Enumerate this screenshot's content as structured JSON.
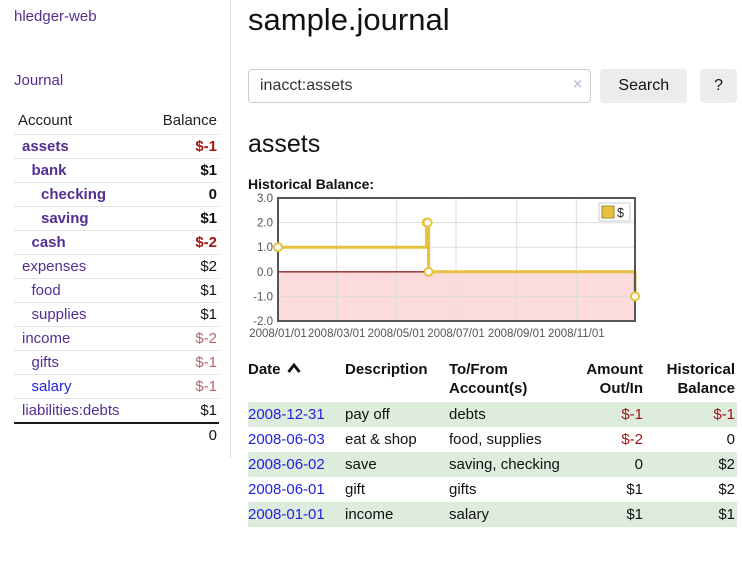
{
  "app": {
    "brand": "hledger-web",
    "nav_journal": "Journal"
  },
  "colors": {
    "link_purple": "#552e91",
    "link_blue": "#2222dd",
    "negative_strong": "#9e1414",
    "negative_soft": "#b36a6a",
    "row_stripe_green": "#ddecdd",
    "chart_line_gold": "#e7c13d"
  },
  "sidebar": {
    "accounts_header": {
      "account": "Account",
      "balance": "Balance"
    },
    "accounts": [
      {
        "name": "assets",
        "depth": 1,
        "bold": true,
        "link": "purple",
        "balance": "$-1",
        "balance_style": "bal-neg-strong"
      },
      {
        "name": "bank",
        "depth": 2,
        "bold": true,
        "link": "purple",
        "balance": "$1",
        "balance_style": "bal-pos-strong"
      },
      {
        "name": "checking",
        "depth": 3,
        "bold": true,
        "link": "purple",
        "balance": "0",
        "balance_style": "bal-pos-strong"
      },
      {
        "name": "saving",
        "depth": 3,
        "bold": true,
        "link": "purple",
        "balance": "$1",
        "balance_style": "bal-pos-strong"
      },
      {
        "name": "cash",
        "depth": 2,
        "bold": true,
        "link": "purple",
        "balance": "$-2",
        "balance_style": "bal-neg-strong"
      },
      {
        "name": "expenses",
        "depth": 1,
        "bold": false,
        "link": "purple",
        "balance": "$2",
        "balance_style": "bal-pos"
      },
      {
        "name": "food",
        "depth": 2,
        "bold": false,
        "link": "purple",
        "balance": "$1",
        "balance_style": "bal-pos"
      },
      {
        "name": "supplies",
        "depth": 2,
        "bold": false,
        "link": "purple",
        "balance": "$1",
        "balance_style": "bal-pos"
      },
      {
        "name": "income",
        "depth": 1,
        "bold": false,
        "link": "purple",
        "balance": "$-2",
        "balance_style": "bal-neg-soft"
      },
      {
        "name": "gifts",
        "depth": 2,
        "bold": false,
        "link": "purple",
        "balance": "$-1",
        "balance_style": "bal-neg-soft"
      },
      {
        "name": "salary",
        "depth": 2,
        "bold": false,
        "link": "blue",
        "balance": "$-1",
        "balance_style": "bal-neg-soft"
      },
      {
        "name": "liabilities:debts",
        "depth": 1,
        "bold": false,
        "link": "purple",
        "balance": "$1",
        "balance_style": "bal-pos"
      }
    ],
    "total": "0"
  },
  "header": {
    "title": "sample.journal"
  },
  "search": {
    "value": "inacct:assets",
    "clear_icon": "×",
    "button": "Search",
    "help_button": "?"
  },
  "account_page": {
    "title": "assets",
    "chart_label": "Historical Balance:"
  },
  "chart_data": {
    "type": "line",
    "style": "step-after",
    "title": "Historical Balance",
    "series": [
      {
        "name": "$",
        "color": "#e7c13d",
        "points": [
          {
            "date": "2008-01-01",
            "value": 1
          },
          {
            "date": "2008-06-01",
            "value": 2
          },
          {
            "date": "2008-06-02",
            "value": 2
          },
          {
            "date": "2008-06-03",
            "value": 0
          },
          {
            "date": "2008-12-31",
            "value": -1
          }
        ]
      }
    ],
    "x_range": [
      "2008-01-01",
      "2008-12-31"
    ],
    "x_ticks": [
      "2008/01/01",
      "2008/03/01",
      "2008/05/01",
      "2008/07/01",
      "2008/09/01",
      "2008/11/01"
    ],
    "y_ticks": [
      3.0,
      2.0,
      1.0,
      0.0,
      -1.0,
      -2.0
    ],
    "ylim": [
      -2,
      3
    ],
    "grid": true,
    "legend_position": "top-right",
    "negative_fill": "#fbdbdb",
    "zero_line_color": "#992222",
    "plot_border_color": "#555555",
    "grid_color": "#dddddd",
    "tick_label_color": "#555555"
  },
  "register": {
    "columns": [
      {
        "id": "date",
        "lines": [
          "Date"
        ],
        "align": "left",
        "sortable": true,
        "sort_dir": "asc"
      },
      {
        "id": "desc",
        "lines": [
          "Description"
        ],
        "align": "left"
      },
      {
        "id": "acct",
        "lines": [
          "To/From",
          "Account(s)"
        ],
        "align": "left"
      },
      {
        "id": "amt",
        "lines": [
          "Amount",
          "Out/In"
        ],
        "align": "right"
      },
      {
        "id": "balcol",
        "lines": [
          "Historical",
          "Balance"
        ],
        "align": "right"
      }
    ],
    "rows": [
      {
        "date": "2008-12-31",
        "description": "pay off",
        "accounts": "debts",
        "amount": "$-1",
        "amount_negative": true,
        "balance": "$-1",
        "balance_negative": true
      },
      {
        "date": "2008-06-03",
        "description": "eat & shop",
        "accounts": "food, supplies",
        "amount": "$-2",
        "amount_negative": true,
        "balance": "0",
        "balance_negative": false
      },
      {
        "date": "2008-06-02",
        "description": "save",
        "accounts": "saving, checking",
        "amount": "0",
        "amount_negative": false,
        "balance": "$2",
        "balance_negative": false
      },
      {
        "date": "2008-06-01",
        "description": "gift",
        "accounts": "gifts",
        "amount": "$1",
        "amount_negative": false,
        "balance": "$2",
        "balance_negative": false
      },
      {
        "date": "2008-01-01",
        "description": "income",
        "accounts": "salary",
        "amount": "$1",
        "amount_negative": false,
        "balance": "$1",
        "balance_negative": false
      }
    ]
  }
}
